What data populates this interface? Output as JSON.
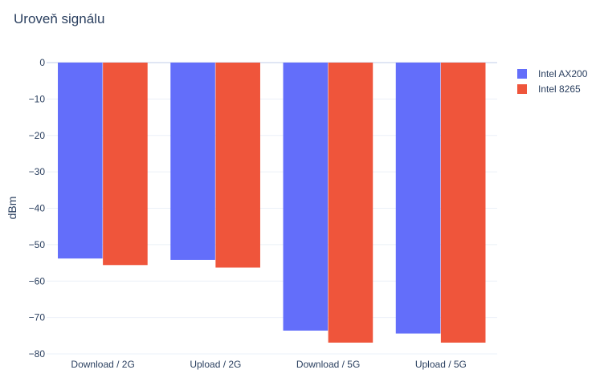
{
  "chart_data": {
    "type": "bar",
    "title": "Uroveň signálu",
    "xlabel": "",
    "ylabel": "dBm",
    "categories": [
      "Download / 2G",
      "Upload / 2G",
      "Download / 5G",
      "Upload / 5G"
    ],
    "series": [
      {
        "name": "Intel AX200",
        "color": "#636efa",
        "values": [
          -53.8,
          -54.2,
          -73.6,
          -74.4
        ]
      },
      {
        "name": "Intel 8265",
        "color": "#ef553b",
        "values": [
          -55.6,
          -56.3,
          -76.9,
          -76.9
        ]
      }
    ],
    "ylim": [
      -80,
      0
    ],
    "yticks": [
      0,
      -10,
      -20,
      -30,
      -40,
      -50,
      -60,
      -70,
      -80
    ],
    "ytick_labels": [
      "0",
      "−10",
      "−20",
      "−30",
      "−40",
      "−50",
      "−60",
      "−70",
      "−80"
    ],
    "grid": true,
    "legend_position": "top-right"
  }
}
